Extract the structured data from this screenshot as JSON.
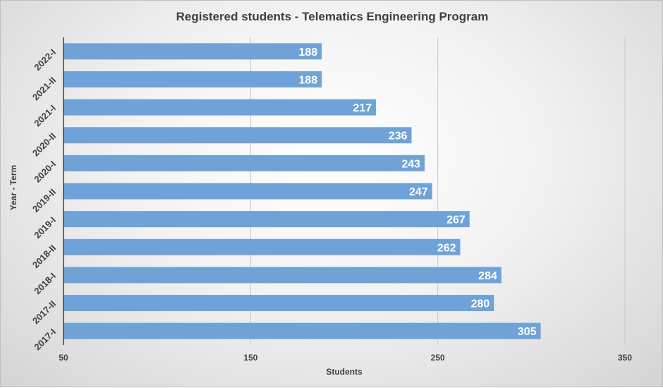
{
  "chart_data": {
    "type": "bar",
    "orientation": "horizontal",
    "title": "Registered students - Telematics Engineering Program",
    "xlabel": "Students",
    "ylabel": "Year - Term",
    "categories": [
      "2017-I",
      "2017-II",
      "2018-I",
      "2018-II",
      "2019-I",
      "2019-II",
      "2020-I",
      "2020-II",
      "2021-I",
      "2021-II",
      "2022-I"
    ],
    "values": [
      305,
      280,
      284,
      262,
      267,
      247,
      243,
      236,
      217,
      188,
      188
    ],
    "xlim": [
      50,
      350
    ],
    "x_ticks": [
      50,
      150,
      250,
      350
    ],
    "grid": "vertical",
    "data_labels": true,
    "bar_color": "#6fa3d8"
  }
}
